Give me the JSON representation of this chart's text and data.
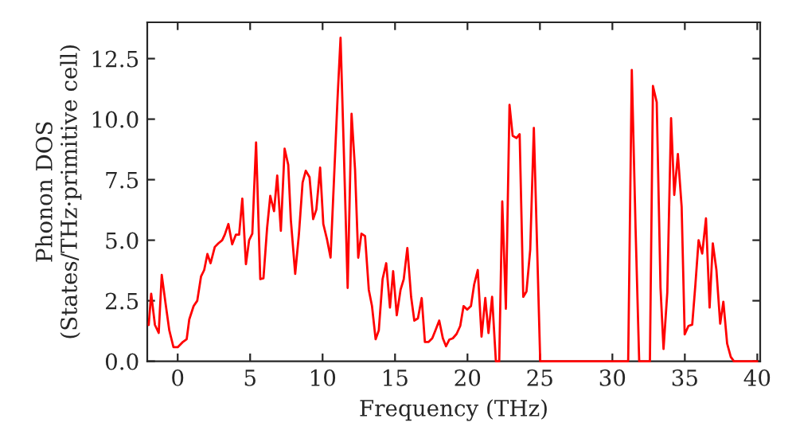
{
  "chart_data": {
    "type": "line",
    "xlabel": "Frequency (THz)",
    "ylabel": "Phonon DOS\n(States/THz·primitive cell)",
    "xlim": [
      -2.1,
      40.2
    ],
    "ylim": [
      0,
      14
    ],
    "xticks": [
      0,
      5,
      10,
      15,
      20,
      25,
      30,
      35,
      40
    ],
    "yticks": [
      {
        "value": 0,
        "label": "0.0"
      },
      {
        "value": 2.5,
        "label": "2.5"
      },
      {
        "value": 5,
        "label": "5.0"
      },
      {
        "value": 7.5,
        "label": "7.5"
      },
      {
        "value": 10,
        "label": "10.0"
      },
      {
        "value": 12.5,
        "label": "12.5"
      }
    ],
    "grid": false,
    "marker": "none",
    "line_style": "solid",
    "series": [
      {
        "color": "#ff0000",
        "x": [
          -2.0,
          -1.83,
          -1.57,
          -1.31,
          -1.1,
          -0.84,
          -0.58,
          -0.29,
          0.0,
          0.36,
          0.62,
          0.8,
          1.1,
          1.35,
          1.61,
          1.83,
          2.05,
          2.27,
          2.56,
          2.81,
          3.07,
          3.25,
          3.5,
          3.76,
          4.02,
          4.24,
          4.46,
          4.71,
          4.93,
          5.15,
          5.41,
          5.7,
          5.92,
          6.17,
          6.39,
          6.65,
          6.87,
          7.12,
          7.38,
          7.63,
          7.81,
          8.11,
          8.37,
          8.62,
          8.84,
          9.1,
          9.35,
          9.57,
          9.83,
          10.05,
          10.3,
          10.55,
          10.77,
          11.03,
          11.24,
          11.47,
          11.73,
          12.0,
          12.24,
          12.46,
          12.68,
          12.93,
          13.19,
          13.41,
          13.66,
          13.88,
          14.14,
          14.39,
          14.65,
          14.87,
          15.12,
          15.38,
          15.6,
          15.85,
          16.11,
          16.33,
          16.58,
          16.84,
          17.06,
          17.32,
          17.57,
          17.79,
          18.05,
          18.3,
          18.52,
          18.74,
          18.99,
          19.25,
          19.5,
          19.73,
          19.98,
          20.24,
          20.46,
          20.71,
          20.97,
          21.23,
          21.45,
          21.7,
          21.96,
          22.19,
          22.4,
          22.65,
          22.9,
          23.12,
          23.38,
          23.6,
          23.85,
          24.07,
          24.33,
          24.58,
          24.8,
          25.02,
          31.09,
          31.34,
          31.6,
          31.85,
          32.59,
          32.8,
          33.06,
          33.32,
          33.53,
          33.79,
          34.05,
          34.27,
          34.52,
          34.78,
          34.99,
          35.25,
          35.51,
          35.73,
          35.95,
          36.2,
          36.46,
          36.71,
          36.93,
          37.18,
          37.44,
          37.66,
          37.92,
          38.17,
          38.39,
          40.0
        ],
        "values": [
          1.5,
          2.79,
          1.5,
          1.17,
          3.57,
          2.4,
          1.28,
          0.58,
          0.58,
          0.8,
          0.91,
          1.73,
          2.28,
          2.5,
          3.5,
          3.77,
          4.43,
          4.05,
          4.72,
          4.87,
          5.0,
          5.23,
          5.67,
          4.83,
          5.23,
          5.23,
          6.72,
          4.01,
          5.0,
          5.27,
          9.04,
          3.39,
          3.43,
          5.5,
          6.83,
          6.2,
          7.67,
          5.39,
          8.78,
          8.11,
          5.83,
          3.61,
          5.27,
          7.38,
          7.87,
          7.6,
          5.87,
          6.27,
          8.0,
          5.67,
          5.05,
          4.28,
          7.27,
          10.82,
          13.36,
          8.6,
          3.03,
          10.22,
          7.93,
          4.28,
          5.27,
          5.17,
          2.95,
          2.28,
          0.91,
          1.28,
          3.39,
          4.05,
          2.22,
          3.72,
          1.9,
          2.95,
          3.39,
          4.68,
          2.66,
          1.68,
          1.77,
          2.61,
          0.8,
          0.8,
          0.95,
          1.28,
          1.68,
          0.95,
          0.62,
          0.89,
          0.95,
          1.13,
          1.46,
          2.28,
          2.13,
          2.28,
          3.17,
          3.77,
          1.02,
          2.61,
          1.17,
          2.66,
          0,
          0,
          6.6,
          2.17,
          10.59,
          9.31,
          9.22,
          9.38,
          2.66,
          2.88,
          4.61,
          9.64,
          4.83,
          0,
          0,
          12.03,
          5.5,
          0,
          0,
          11.37,
          10.7,
          3.06,
          0.51,
          2.84,
          10.04,
          6.87,
          8.56,
          6.38,
          1.11,
          1.46,
          1.51,
          3.17,
          5.0,
          4.45,
          5.9,
          2.22,
          4.87,
          3.77,
          1.55,
          2.46,
          0.73,
          0.18,
          0,
          0
        ]
      }
    ]
  }
}
